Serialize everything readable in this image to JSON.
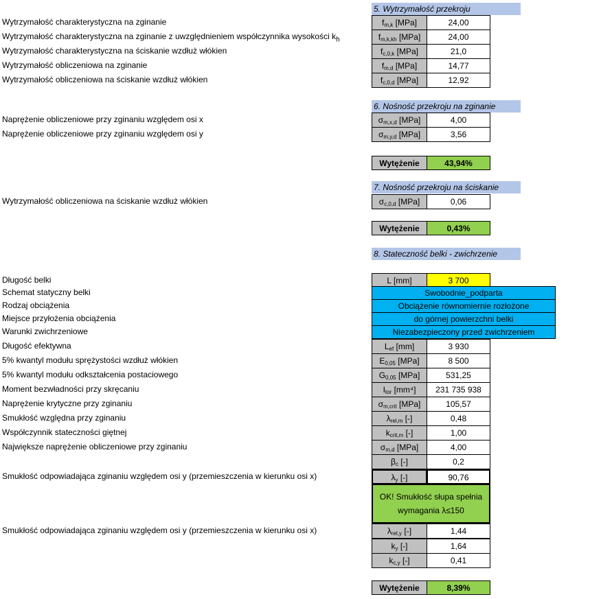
{
  "s5": {
    "title": "5. Wytrzymałość przekroju",
    "rows": [
      {
        "label": "Wytrzymałość charakterystyczna na zginanie",
        "sym": "f",
        "sub": "m,k",
        "unit": "[MPa]",
        "value": "24,00"
      },
      {
        "label": "Wytrzymałość charakterystyczna na zginanie z uwzględnieniem współczynnika wysokości k",
        "label_sub": "h",
        "sym": "f",
        "sub": "m,k,kh",
        "unit": "[MPa]",
        "value": "24,00"
      },
      {
        "label": "Wytrzymałość charakterystyczna na ściskanie wzdłuż włókien",
        "sym": "f",
        "sub": "c,0,k",
        "unit": "[MPa]",
        "value": "21,0"
      },
      {
        "label": "Wytrzymałość obliczeniowa na zginanie",
        "sym": "f",
        "sub": "m,d",
        "unit": "[MPa]",
        "value": "14,77"
      },
      {
        "label": "Wytrzymałość obliczeniowa na ściskanie wzdłuż włókien",
        "sym": "f",
        "sub": "c,0,d",
        "unit": "[MPa]",
        "value": "12,92"
      }
    ]
  },
  "s6": {
    "title": "6. Nośność przekroju na zginanie",
    "rows": [
      {
        "label": "Naprężenie obliczeniowe przy zginaniu względem osi x",
        "sym": "σ",
        "sub": "m,x,d",
        "unit": "[MPa]",
        "value": "4,00"
      },
      {
        "label": "Naprężenie obliczeniowe przy zginaniu względem osi y",
        "sym": "σ",
        "sub": "m,y,d",
        "unit": "[MPa]",
        "value": "3,56"
      }
    ],
    "util_label": "Wytężenie",
    "util_value": "43,94%"
  },
  "s7": {
    "title": "7. Nośność przekroju na ściskanie",
    "rows": [
      {
        "label": "Wytrzymałość obliczeniowa na ściskanie wzdłuż włókien",
        "sym": "σ",
        "sub": "c,0,d",
        "unit": "[MPa]",
        "value": "0,06"
      }
    ],
    "util_label": "Wytężenie",
    "util_value": "0,43%"
  },
  "s8": {
    "title": "8. Stateczność belki - zwichrzenie",
    "length": {
      "label": "Długość belki",
      "sym": "L",
      "unit": "[mm]",
      "value": "3 700"
    },
    "options": [
      {
        "label": "Schemat statyczny belki",
        "value": "Swobodnie_podparta"
      },
      {
        "label": "Rodzaj obciążenia",
        "value": "Obciążenie równomiernie rozłożone"
      },
      {
        "label": "Miejsce przyłożenia obciążenia",
        "value": "do górnej powierzchni belki"
      },
      {
        "label": "Warunki zwichrzeniowe",
        "value": "Niezabezpieczony przed zwichrzeniem"
      }
    ],
    "rows": [
      {
        "label": "Długość efektywna",
        "sym": "L",
        "sub": "ef",
        "unit": "[mm]",
        "value": "3 930"
      },
      {
        "label": "5% kwantyl modułu sprężystości wzdłuż włókien",
        "sym": "E",
        "sub": "0,05",
        "unit": "[MPa]",
        "value": "8 500"
      },
      {
        "label": "5% kwantyl modułu odkształcenia postaciowego",
        "sym": "G",
        "sub": "0,05",
        "unit": "[MPa]",
        "value": "531,25"
      },
      {
        "label": "Moment bezwładności przy skręcaniu",
        "sym": "I",
        "sub": "tor",
        "unit": "[mm⁴]",
        "value": "231 735 938"
      },
      {
        "label": "Naprężenie krytyczne przy zginaniu",
        "sym": "σ",
        "sub": "m,crit",
        "unit": "[MPa]",
        "value": "105,57"
      },
      {
        "label": "Smukłość względna przy zginaniu",
        "sym": "λ",
        "sub": "rel,m",
        "unit": "[-]",
        "value": "0,48"
      },
      {
        "label": "Współczynnik stateczności giętnej",
        "sym": "k",
        "sub": "crit,m",
        "unit": "[-]",
        "value": "1,00"
      },
      {
        "label": "Największe naprężenie obliczeniowe przy zginaniu",
        "sym": "σ",
        "sub": "m,d",
        "unit": "[MPa]",
        "value": "4,00"
      },
      {
        "label": "",
        "sym": "β",
        "sub": "c",
        "unit": "[-]",
        "value": "0,2"
      },
      {
        "label": "Smukłość odpowiadająca zginaniu względem osi y (przemieszczenia w kierunku osi x)",
        "sym": "λ",
        "sub": "y",
        "unit": "[-]",
        "value": "90,76"
      }
    ],
    "ok_line1": "OK! Smukłość słupa spełnia",
    "ok_line2": "wymagania λ≤150",
    "rows2": [
      {
        "label": "Smukłość odpowiadająca zginaniu względem osi y (przemieszczenia w kierunku osi x)",
        "sym": "λ",
        "sub": "rel,y",
        "unit": "[-]",
        "value": "1,44"
      },
      {
        "label": "",
        "sym": "k",
        "sub": "y",
        "unit": "[-]",
        "value": "1,64"
      },
      {
        "label": "",
        "sym": "k",
        "sub": "c,y",
        "unit": "[-]",
        "value": "0,41"
      }
    ],
    "util_label": "Wytężenie",
    "util_value": "8,39%"
  },
  "colors": {
    "header": "#b4c6e7",
    "symbol": "#c0c0c0",
    "input": "#ffff00",
    "option": "#00b0f0",
    "ok": "#92d050"
  }
}
